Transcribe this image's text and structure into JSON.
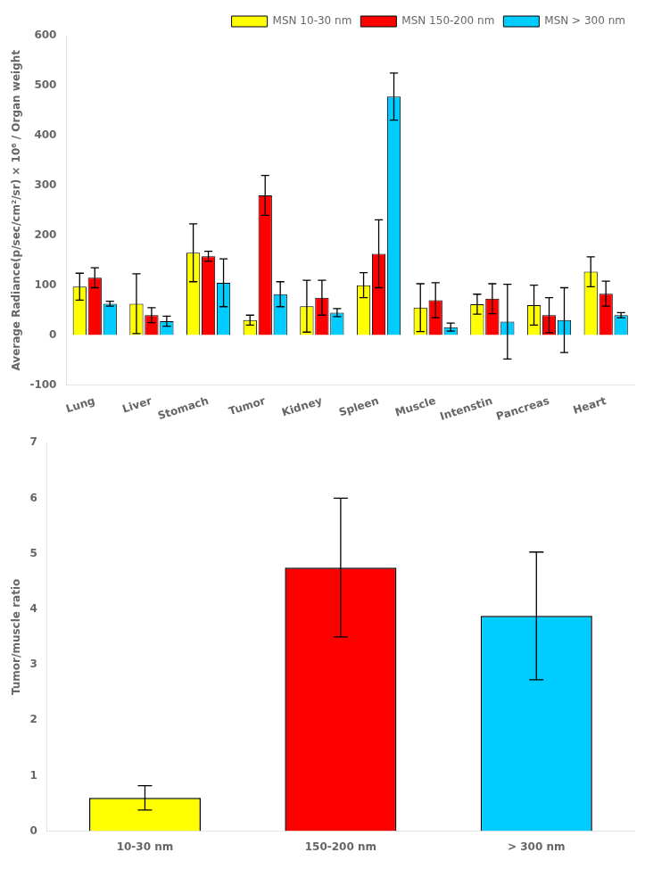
{
  "chart_data": [
    {
      "type": "bar",
      "categories": [
        "Lung",
        "Liver",
        "Stomach",
        "Tumor",
        "Kidney",
        "Spleen",
        "Muscle",
        "Intenstin",
        "Pancreas",
        "Heart"
      ],
      "series": [
        {
          "name": "MSN 10-30 nm",
          "color": "#FFFF00",
          "values": [
            97,
            63,
            165,
            30,
            58,
            100,
            55,
            62,
            60,
            127
          ],
          "errors": [
            27,
            60,
            58,
            10,
            52,
            25,
            48,
            20,
            40,
            30
          ]
        },
        {
          "name": "MSN 150-200 nm",
          "color": "#FF0000",
          "values": [
            115,
            40,
            158,
            280,
            75,
            163,
            70,
            73,
            40,
            83
          ],
          "errors": [
            20,
            15,
            10,
            40,
            35,
            68,
            35,
            30,
            35,
            25
          ]
        },
        {
          "name": "MSN > 300 nm",
          "color": "#00CCFF",
          "values": [
            63,
            28,
            105,
            82,
            45,
            478,
            16,
            27,
            30,
            40
          ],
          "errors": [
            5,
            10,
            48,
            25,
            8,
            47,
            8,
            75,
            65,
            5
          ]
        }
      ],
      "ylabel": "Average Radiance(p/sec/cm²/sr) × 10⁶ / Organ weight",
      "ylim": [
        -100,
        600
      ],
      "yticks": [
        -100,
        0,
        100,
        200,
        300,
        400,
        500,
        600
      ],
      "legend": "upper right",
      "grid": false
    },
    {
      "type": "bar",
      "categories": [
        "10-30 nm",
        "150-200 nm",
        "> 300 nm"
      ],
      "values": [
        0.6,
        4.75,
        3.88
      ],
      "errors": [
        0.22,
        1.25,
        1.15
      ],
      "colors": [
        "#FFFF00",
        "#FF0000",
        "#00CCFF"
      ],
      "ylabel": "Tumor/muscle ratio",
      "ylim": [
        0,
        7
      ],
      "yticks": [
        0,
        1,
        2,
        3,
        4,
        5,
        6,
        7
      ],
      "grid": false
    }
  ]
}
